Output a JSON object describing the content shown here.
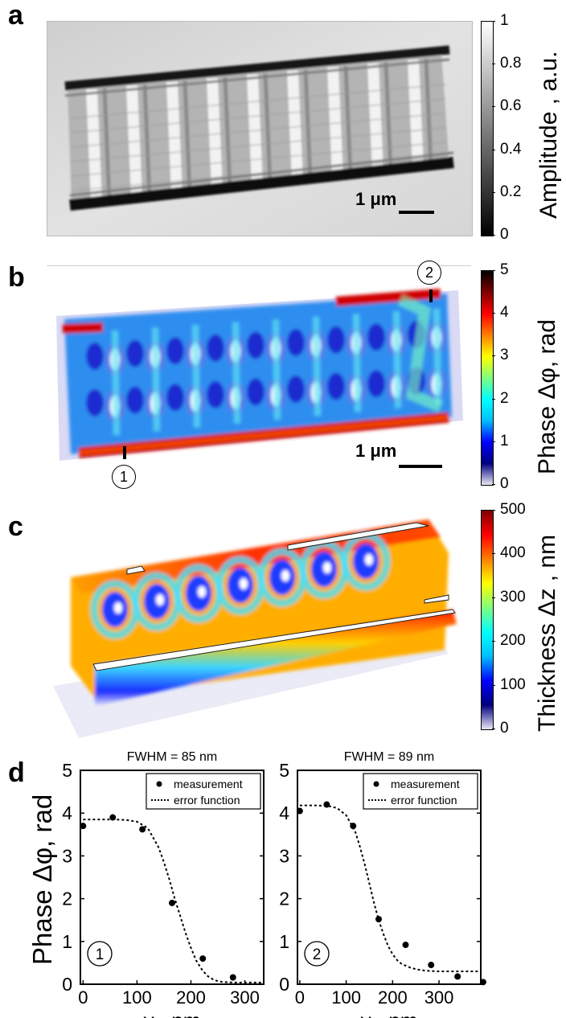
{
  "panels": {
    "a": {
      "letter": "a",
      "colorbar_label": "Amplitude , a.u.",
      "colorbar_ticks": [
        "1",
        "0.8",
        "0.6",
        "0.4",
        "0.2",
        "0"
      ],
      "scale_bar": "1 μm"
    },
    "b": {
      "letter": "b",
      "colorbar_label": "Phase Δφ, rad",
      "colorbar_ticks": [
        "5",
        "4",
        "3",
        "2",
        "1",
        "0"
      ],
      "scale_bar": "1 μm",
      "markers": [
        "1",
        "2"
      ]
    },
    "c": {
      "letter": "c",
      "colorbar_label": "Thickness Δz , nm",
      "colorbar_ticks": [
        "500",
        "400",
        "300",
        "200",
        "100",
        "0"
      ]
    },
    "d": {
      "letter": "d"
    }
  },
  "colors": {
    "jet_stops": [
      "#e8e8f4",
      "#00007f",
      "#0000ff",
      "#00bfff",
      "#00ffff",
      "#7fff7f",
      "#ffff00",
      "#ff7f00",
      "#ff0000",
      "#7f0000",
      "#000000"
    ],
    "gray_top": "#ffffff",
    "gray_bottom": "#000000"
  },
  "chart_data": [
    {
      "type": "scatter",
      "title": "FWHM = 85 nm",
      "xlabel": "y , nm",
      "ylabel": "Phase Δφ, rad",
      "xlim": [
        -5,
        335
      ],
      "ylim": [
        0,
        5
      ],
      "xticks": [
        0,
        100,
        200,
        300
      ],
      "yticks": [
        0,
        1,
        2,
        3,
        4,
        5
      ],
      "series": [
        {
          "name": "measurement",
          "kind": "points",
          "x": [
            0,
            55,
            110,
            165,
            222,
            278
          ],
          "y": [
            3.7,
            3.9,
            3.62,
            1.9,
            0.6,
            0.16
          ]
        },
        {
          "name": "error function",
          "kind": "dotted-line",
          "x": [
            0,
            20,
            40,
            60,
            80,
            100,
            120,
            140,
            150,
            160,
            170,
            180,
            190,
            200,
            210,
            220,
            230,
            240,
            250,
            260,
            280,
            300,
            320,
            330
          ],
          "y": [
            3.85,
            3.85,
            3.85,
            3.85,
            3.84,
            3.8,
            3.65,
            3.2,
            2.85,
            2.45,
            2.0,
            1.6,
            1.2,
            0.85,
            0.55,
            0.35,
            0.2,
            0.12,
            0.07,
            0.05,
            0.04,
            0.04,
            0.04,
            0.04
          ]
        }
      ],
      "legend_position": "top-right",
      "marker": "1"
    },
    {
      "type": "scatter",
      "title": "FWHM = 89 nm",
      "xlabel": "y , nm",
      "ylabel": "",
      "xlim": [
        -5,
        390
      ],
      "ylim": [
        0,
        5
      ],
      "xticks": [
        0,
        100,
        200,
        300
      ],
      "yticks": [
        0,
        1,
        2,
        3,
        4,
        5
      ],
      "series": [
        {
          "name": "measurement",
          "kind": "points",
          "x": [
            0,
            58,
            115,
            170,
            228,
            283,
            340,
            395
          ],
          "y": [
            4.05,
            4.2,
            3.7,
            1.52,
            0.92,
            0.45,
            0.18,
            0.05
          ]
        },
        {
          "name": "error function",
          "kind": "dotted-line",
          "x": [
            0,
            30,
            60,
            80,
            100,
            120,
            130,
            140,
            150,
            160,
            170,
            180,
            190,
            200,
            210,
            220,
            240,
            260,
            280,
            300,
            330,
            360,
            385
          ],
          "y": [
            4.18,
            4.18,
            4.17,
            4.12,
            3.95,
            3.55,
            3.2,
            2.8,
            2.35,
            1.9,
            1.5,
            1.18,
            0.9,
            0.7,
            0.56,
            0.47,
            0.38,
            0.33,
            0.31,
            0.3,
            0.3,
            0.3,
            0.3
          ]
        }
      ],
      "legend_position": "top-right",
      "marker": "2"
    }
  ]
}
